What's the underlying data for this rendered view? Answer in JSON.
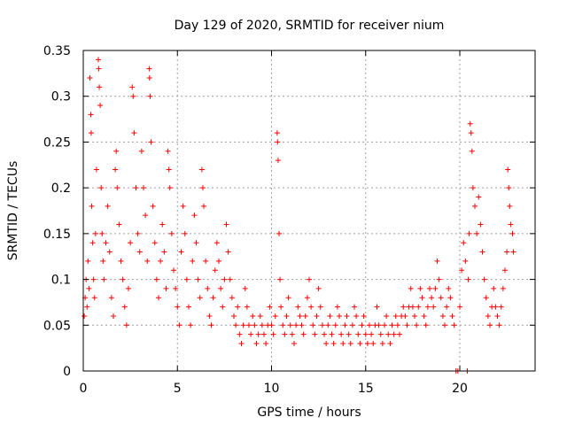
{
  "chart_data": {
    "type": "scatter",
    "title": "Day 129 of 2020, SRMTID for receiver nium",
    "xlabel": "GPS time / hours",
    "ylabel": "SRMTID / TECUs",
    "xlim": [
      0,
      24
    ],
    "ylim": [
      0,
      0.35
    ],
    "xticks": [
      0,
      5,
      10,
      15,
      20
    ],
    "xtick_labels": [
      "0",
      "5",
      "10",
      "15",
      "20"
    ],
    "yticks": [
      0,
      0.05,
      0.1,
      0.15,
      0.2,
      0.25,
      0.3,
      0.35
    ],
    "ytick_labels": [
      "0",
      "0.05",
      "0.1",
      "0.15",
      "0.2",
      "0.25",
      "0.3",
      "0.35"
    ],
    "grid": true,
    "marker": "+",
    "color": "#ff0000",
    "series": [
      {
        "name": "SRMTID",
        "points": [
          [
            0.05,
            0.06
          ],
          [
            0.1,
            0.08
          ],
          [
            0.15,
            0.1
          ],
          [
            0.2,
            0.07
          ],
          [
            0.25,
            0.12
          ],
          [
            0.3,
            0.09
          ],
          [
            0.35,
            0.32
          ],
          [
            0.4,
            0.28
          ],
          [
            0.42,
            0.26
          ],
          [
            0.45,
            0.18
          ],
          [
            0.5,
            0.14
          ],
          [
            0.55,
            0.1
          ],
          [
            0.6,
            0.08
          ],
          [
            0.65,
            0.15
          ],
          [
            0.7,
            0.22
          ],
          [
            0.8,
            0.34
          ],
          [
            0.82,
            0.33
          ],
          [
            0.85,
            0.31
          ],
          [
            0.9,
            0.29
          ],
          [
            0.95,
            0.2
          ],
          [
            1.0,
            0.15
          ],
          [
            1.05,
            0.12
          ],
          [
            1.1,
            0.1
          ],
          [
            1.2,
            0.14
          ],
          [
            1.3,
            0.18
          ],
          [
            1.4,
            0.13
          ],
          [
            1.5,
            0.08
          ],
          [
            1.6,
            0.06
          ],
          [
            1.7,
            0.22
          ],
          [
            1.75,
            0.24
          ],
          [
            1.8,
            0.2
          ],
          [
            1.9,
            0.16
          ],
          [
            2.0,
            0.12
          ],
          [
            2.1,
            0.1
          ],
          [
            2.2,
            0.07
          ],
          [
            2.3,
            0.05
          ],
          [
            2.4,
            0.09
          ],
          [
            2.5,
            0.14
          ],
          [
            2.6,
            0.31
          ],
          [
            2.65,
            0.3
          ],
          [
            2.7,
            0.26
          ],
          [
            2.8,
            0.2
          ],
          [
            2.9,
            0.15
          ],
          [
            3.0,
            0.13
          ],
          [
            3.1,
            0.24
          ],
          [
            3.2,
            0.2
          ],
          [
            3.3,
            0.17
          ],
          [
            3.4,
            0.12
          ],
          [
            3.5,
            0.33
          ],
          [
            3.52,
            0.32
          ],
          [
            3.55,
            0.3
          ],
          [
            3.6,
            0.25
          ],
          [
            3.7,
            0.18
          ],
          [
            3.8,
            0.14
          ],
          [
            3.9,
            0.1
          ],
          [
            4.0,
            0.08
          ],
          [
            4.1,
            0.12
          ],
          [
            4.2,
            0.16
          ],
          [
            4.3,
            0.13
          ],
          [
            4.4,
            0.09
          ],
          [
            4.5,
            0.24
          ],
          [
            4.55,
            0.22
          ],
          [
            4.6,
            0.2
          ],
          [
            4.7,
            0.15
          ],
          [
            4.8,
            0.11
          ],
          [
            4.9,
            0.09
          ],
          [
            5.0,
            0.07
          ],
          [
            5.1,
            0.05
          ],
          [
            5.2,
            0.13
          ],
          [
            5.3,
            0.18
          ],
          [
            5.4,
            0.15
          ],
          [
            5.5,
            0.1
          ],
          [
            5.6,
            0.07
          ],
          [
            5.7,
            0.05
          ],
          [
            5.8,
            0.12
          ],
          [
            5.9,
            0.17
          ],
          [
            6.0,
            0.14
          ],
          [
            6.1,
            0.1
          ],
          [
            6.2,
            0.08
          ],
          [
            6.3,
            0.22
          ],
          [
            6.35,
            0.2
          ],
          [
            6.4,
            0.18
          ],
          [
            6.5,
            0.12
          ],
          [
            6.6,
            0.09
          ],
          [
            6.7,
            0.06
          ],
          [
            6.8,
            0.05
          ],
          [
            6.9,
            0.08
          ],
          [
            7.0,
            0.11
          ],
          [
            7.1,
            0.14
          ],
          [
            7.2,
            0.12
          ],
          [
            7.3,
            0.09
          ],
          [
            7.4,
            0.07
          ],
          [
            7.5,
            0.1
          ],
          [
            7.6,
            0.16
          ],
          [
            7.7,
            0.13
          ],
          [
            7.8,
            0.1
          ],
          [
            7.9,
            0.08
          ],
          [
            8.0,
            0.06
          ],
          [
            8.1,
            0.05
          ],
          [
            8.2,
            0.07
          ],
          [
            8.3,
            0.04
          ],
          [
            8.4,
            0.03
          ],
          [
            8.5,
            0.05
          ],
          [
            8.6,
            0.09
          ],
          [
            8.7,
            0.07
          ],
          [
            8.8,
            0.05
          ],
          [
            8.9,
            0.04
          ],
          [
            9.0,
            0.06
          ],
          [
            9.1,
            0.05
          ],
          [
            9.2,
            0.03
          ],
          [
            9.3,
            0.04
          ],
          [
            9.4,
            0.06
          ],
          [
            9.5,
            0.05
          ],
          [
            9.6,
            0.04
          ],
          [
            9.7,
            0.03
          ],
          [
            9.8,
            0.05
          ],
          [
            9.9,
            0.07
          ],
          [
            10.0,
            0.05
          ],
          [
            10.1,
            0.04
          ],
          [
            10.2,
            0.06
          ],
          [
            10.3,
            0.26
          ],
          [
            10.32,
            0.25
          ],
          [
            10.35,
            0.23
          ],
          [
            10.4,
            0.15
          ],
          [
            10.45,
            0.1
          ],
          [
            10.5,
            0.07
          ],
          [
            10.6,
            0.05
          ],
          [
            10.7,
            0.04
          ],
          [
            10.8,
            0.06
          ],
          [
            10.9,
            0.08
          ],
          [
            11.0,
            0.05
          ],
          [
            11.1,
            0.04
          ],
          [
            11.2,
            0.03
          ],
          [
            11.3,
            0.05
          ],
          [
            11.4,
            0.07
          ],
          [
            11.5,
            0.06
          ],
          [
            11.6,
            0.05
          ],
          [
            11.7,
            0.04
          ],
          [
            11.8,
            0.06
          ],
          [
            11.9,
            0.08
          ],
          [
            12.0,
            0.1
          ],
          [
            12.1,
            0.07
          ],
          [
            12.2,
            0.05
          ],
          [
            12.3,
            0.04
          ],
          [
            12.4,
            0.06
          ],
          [
            12.5,
            0.09
          ],
          [
            12.6,
            0.07
          ],
          [
            12.7,
            0.05
          ],
          [
            12.8,
            0.04
          ],
          [
            12.9,
            0.03
          ],
          [
            13.0,
            0.05
          ],
          [
            13.1,
            0.06
          ],
          [
            13.2,
            0.04
          ],
          [
            13.3,
            0.03
          ],
          [
            13.4,
            0.05
          ],
          [
            13.5,
            0.07
          ],
          [
            13.6,
            0.06
          ],
          [
            13.7,
            0.04
          ],
          [
            13.8,
            0.03
          ],
          [
            13.9,
            0.05
          ],
          [
            14.0,
            0.06
          ],
          [
            14.1,
            0.04
          ],
          [
            14.2,
            0.03
          ],
          [
            14.3,
            0.05
          ],
          [
            14.4,
            0.07
          ],
          [
            14.5,
            0.06
          ],
          [
            14.6,
            0.04
          ],
          [
            14.7,
            0.03
          ],
          [
            14.8,
            0.05
          ],
          [
            14.9,
            0.06
          ],
          [
            15.0,
            0.04
          ],
          [
            15.1,
            0.03
          ],
          [
            15.2,
            0.05
          ],
          [
            15.3,
            0.04
          ],
          [
            15.4,
            0.03
          ],
          [
            15.5,
            0.05
          ],
          [
            15.6,
            0.07
          ],
          [
            15.7,
            0.05
          ],
          [
            15.8,
            0.04
          ],
          [
            15.9,
            0.03
          ],
          [
            16.0,
            0.05
          ],
          [
            16.1,
            0.06
          ],
          [
            16.2,
            0.04
          ],
          [
            16.3,
            0.03
          ],
          [
            16.4,
            0.05
          ],
          [
            16.5,
            0.04
          ],
          [
            16.6,
            0.06
          ],
          [
            16.7,
            0.05
          ],
          [
            16.8,
            0.04
          ],
          [
            16.9,
            0.06
          ],
          [
            17.0,
            0.07
          ],
          [
            17.1,
            0.06
          ],
          [
            17.2,
            0.05
          ],
          [
            17.3,
            0.07
          ],
          [
            17.4,
            0.09
          ],
          [
            17.5,
            0.07
          ],
          [
            17.6,
            0.06
          ],
          [
            17.7,
            0.05
          ],
          [
            17.8,
            0.07
          ],
          [
            17.9,
            0.09
          ],
          [
            18.0,
            0.08
          ],
          [
            18.1,
            0.06
          ],
          [
            18.2,
            0.05
          ],
          [
            18.3,
            0.07
          ],
          [
            18.4,
            0.09
          ],
          [
            18.5,
            0.08
          ],
          [
            18.6,
            0.07
          ],
          [
            18.7,
            0.09
          ],
          [
            18.8,
            0.12
          ],
          [
            18.9,
            0.1
          ],
          [
            19.0,
            0.08
          ],
          [
            19.1,
            0.06
          ],
          [
            19.2,
            0.05
          ],
          [
            19.3,
            0.07
          ],
          [
            19.4,
            0.09
          ],
          [
            19.5,
            0.08
          ],
          [
            19.6,
            0.06
          ],
          [
            19.7,
            0.05
          ],
          [
            19.8,
            0.0
          ],
          [
            19.9,
            0.0
          ],
          [
            20.0,
            0.07
          ],
          [
            20.1,
            0.11
          ],
          [
            20.2,
            0.14
          ],
          [
            20.3,
            0.12
          ],
          [
            20.4,
            0.0
          ],
          [
            20.45,
            0.1
          ],
          [
            20.5,
            0.15
          ],
          [
            20.55,
            0.27
          ],
          [
            20.6,
            0.26
          ],
          [
            20.65,
            0.24
          ],
          [
            20.7,
            0.2
          ],
          [
            20.8,
            0.18
          ],
          [
            20.9,
            0.15
          ],
          [
            21.0,
            0.19
          ],
          [
            21.1,
            0.16
          ],
          [
            21.2,
            0.13
          ],
          [
            21.3,
            0.1
          ],
          [
            21.4,
            0.08
          ],
          [
            21.5,
            0.06
          ],
          [
            21.6,
            0.05
          ],
          [
            21.7,
            0.07
          ],
          [
            21.8,
            0.09
          ],
          [
            21.9,
            0.07
          ],
          [
            22.0,
            0.06
          ],
          [
            22.1,
            0.05
          ],
          [
            22.2,
            0.07
          ],
          [
            22.3,
            0.09
          ],
          [
            22.4,
            0.11
          ],
          [
            22.5,
            0.13
          ],
          [
            22.55,
            0.22
          ],
          [
            22.6,
            0.2
          ],
          [
            22.65,
            0.18
          ],
          [
            22.7,
            0.16
          ],
          [
            22.8,
            0.15
          ],
          [
            22.85,
            0.13
          ]
        ]
      }
    ]
  }
}
